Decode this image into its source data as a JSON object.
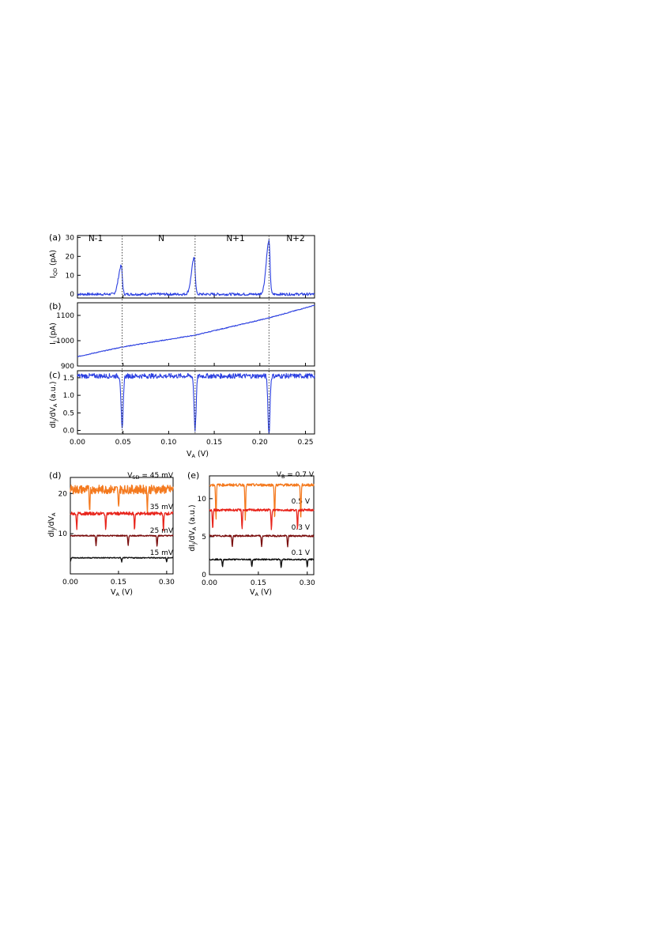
{
  "panel_labels": [
    "(a)",
    "(b)",
    "(c)",
    "(d)",
    "(e)"
  ],
  "regions": [
    "N-1",
    "N",
    "N+1",
    "N+2"
  ],
  "axes": {
    "a_ylabel": {
      "main": "I",
      "sub": "QD",
      "rest": " (pA)"
    },
    "b_ylabel": {
      "main": "I",
      "sub": "J",
      "rest": " (pA)"
    },
    "c_ylabel": {
      "main": "dI",
      "sub": "J",
      "mid": "/dV",
      "sub2": "A",
      "rest": " (a.u.)"
    },
    "c_xlabel": {
      "main": "V",
      "sub": "A",
      "rest": " (V)"
    },
    "d_ylabel": {
      "main": "dI",
      "sub": "J",
      "mid": "/dV",
      "sub2": "A",
      "rest": ""
    },
    "d_xlabel": {
      "main": "V",
      "sub": "A",
      "rest": " (V)"
    },
    "e_ylabel": {
      "main": "dI",
      "sub": "J",
      "mid": "/dV",
      "sub2": "A",
      "rest": " (a.u.)"
    },
    "e_xlabel": {
      "main": "V",
      "sub": "A",
      "rest": " (V)"
    }
  },
  "d_curve_labels": [
    {
      "main": "V",
      "sub": "SD",
      "rest": " = 45 mV"
    },
    {
      "main": "35 mV",
      "sub": "",
      "rest": ""
    },
    {
      "main": "25 mV",
      "sub": "",
      "rest": ""
    },
    {
      "main": "15 mV",
      "sub": "",
      "rest": ""
    }
  ],
  "e_curve_labels": [
    {
      "main": "V",
      "sub": "B",
      "rest": " = 0.7 V"
    },
    {
      "main": "0.5 V",
      "sub": "",
      "rest": ""
    },
    {
      "main": "0.3 V",
      "sub": "",
      "rest": ""
    },
    {
      "main": "0.1 V",
      "sub": "",
      "rest": ""
    }
  ],
  "colors": {
    "blue": "#2b3fe0",
    "orange": "#f47a1f",
    "red": "#e8251c",
    "darkred": "#7a0d0d",
    "black": "#111111"
  },
  "chart_data": [
    {
      "panel": "(a)",
      "type": "line",
      "xlim": [
        0,
        0.26
      ],
      "ylim": [
        -2,
        31
      ],
      "yticks": [
        0,
        10,
        20,
        30
      ],
      "peaks": [
        {
          "x": 0.048,
          "y": 15
        },
        {
          "x": 0.128,
          "y": 19
        },
        {
          "x": 0.21,
          "y": 28
        }
      ],
      "baseline": 0,
      "dotted_lines_x": [
        0.049,
        0.129,
        0.21
      ],
      "series": [
        {
          "color": "#2b3fe0"
        }
      ]
    },
    {
      "panel": "(b)",
      "type": "line",
      "xlim": [
        0,
        0.26
      ],
      "ylim": [
        900,
        1150
      ],
      "yticks": [
        900,
        1000,
        1100
      ],
      "x": [
        0.0,
        0.049,
        0.129,
        0.21,
        0.26
      ],
      "y": [
        937,
        975,
        1022,
        1090,
        1140
      ],
      "series": [
        {
          "color": "#2b3fe0"
        }
      ]
    },
    {
      "panel": "(c)",
      "type": "line",
      "xlim": [
        0,
        0.26
      ],
      "ylim": [
        -0.1,
        1.7
      ],
      "yticks": [
        0,
        0.5,
        1.0,
        1.5
      ],
      "xticks": [
        0.0,
        0.05,
        0.1,
        0.15,
        0.2,
        0.25
      ],
      "baseline": 1.55,
      "dips": [
        {
          "x": 0.049,
          "y": 0.0
        },
        {
          "x": 0.129,
          "y": 0.03
        },
        {
          "x": 0.21,
          "y": -0.1
        }
      ],
      "series": [
        {
          "color": "#2b3fe0"
        }
      ]
    },
    {
      "panel": "(d)",
      "type": "line",
      "xlim": [
        0,
        0.32
      ],
      "ylim": [
        0,
        24
      ],
      "yticks": [
        10,
        20
      ],
      "xticks": [
        0,
        0.15,
        0.3
      ],
      "series": [
        {
          "name": "V_SD = 45 mV",
          "baseline": 21,
          "dips_x": [
            0.06,
            0.15,
            0.24
          ],
          "dip_depth": 5,
          "color": "#f47a1f"
        },
        {
          "name": "35 mV",
          "baseline": 15,
          "dips_x": [
            0.02,
            0.11,
            0.2,
            0.29
          ],
          "dip_depth": 4,
          "color": "#e8251c"
        },
        {
          "name": "25 mV",
          "baseline": 9.5,
          "dips_x": [
            0.08,
            0.18,
            0.27
          ],
          "dip_depth": 2.5,
          "color": "#7a0d0d"
        },
        {
          "name": "15 mV",
          "baseline": 4,
          "dips_x": [
            0.0,
            0.16,
            0.3
          ],
          "dip_depth": 1,
          "color": "#111111"
        }
      ]
    },
    {
      "panel": "(e)",
      "type": "line",
      "xlim": [
        0,
        0.32
      ],
      "ylim": [
        0,
        13
      ],
      "yticks": [
        0,
        5,
        10
      ],
      "xticks": [
        0,
        0.15,
        0.3
      ],
      "series": [
        {
          "name": "V_B = 0.7 V",
          "baseline": 11.8,
          "dips_x": [
            0.02,
            0.11,
            0.2,
            0.28
          ],
          "dip_depth": 4.5,
          "color": "#f47a1f"
        },
        {
          "name": "0.5 V",
          "baseline": 8.5,
          "dips_x": [
            0.01,
            0.1,
            0.19,
            0.27
          ],
          "dip_depth": 2.5,
          "color": "#e8251c"
        },
        {
          "name": "0.3 V",
          "baseline": 5.1,
          "dips_x": [
            0.07,
            0.16,
            0.24
          ],
          "dip_depth": 1.5,
          "color": "#7a0d0d"
        },
        {
          "name": "0.1 V",
          "baseline": 2,
          "dips_x": [
            0.04,
            0.13,
            0.22,
            0.3
          ],
          "dip_depth": 1,
          "color": "#111111"
        }
      ]
    }
  ]
}
